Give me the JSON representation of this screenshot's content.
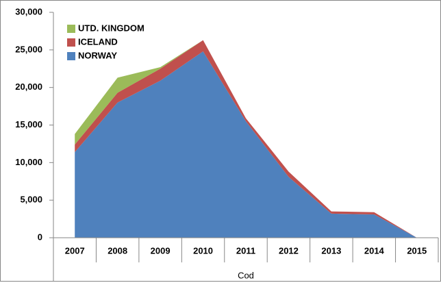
{
  "chart_data": {
    "type": "stacked_area",
    "x_label": "Cod",
    "categories": [
      "2007",
      "2008",
      "2009",
      "2010",
      "2011",
      "2012",
      "2013",
      "2014",
      "2015"
    ],
    "series": [
      {
        "name": "NORWAY",
        "color": "#4f81bd",
        "values": [
          11400,
          18000,
          20900,
          24800,
          15500,
          8100,
          3200,
          3100,
          0
        ]
      },
      {
        "name": "ICELAND",
        "color": "#c0504d",
        "values": [
          1000,
          1300,
          1600,
          1500,
          400,
          700,
          300,
          300,
          0
        ]
      },
      {
        "name": "UTD. KINGDOM",
        "color": "#9bbb59",
        "values": [
          1400,
          2000,
          200,
          0,
          0,
          0,
          0,
          0,
          0
        ]
      }
    ],
    "ylim": [
      0,
      30000
    ],
    "yticks": [
      0,
      {
        "value": 5000,
        "label": "5,000"
      },
      {
        "value": 10000,
        "label": "10,000"
      },
      {
        "value": 15000,
        "label": "15,000"
      },
      {
        "value": 20000,
        "label": "20,000"
      },
      {
        "value": 25000,
        "label": "25,000"
      },
      {
        "value": 30000,
        "label": "30,000"
      }
    ],
    "legend": "top-left"
  }
}
